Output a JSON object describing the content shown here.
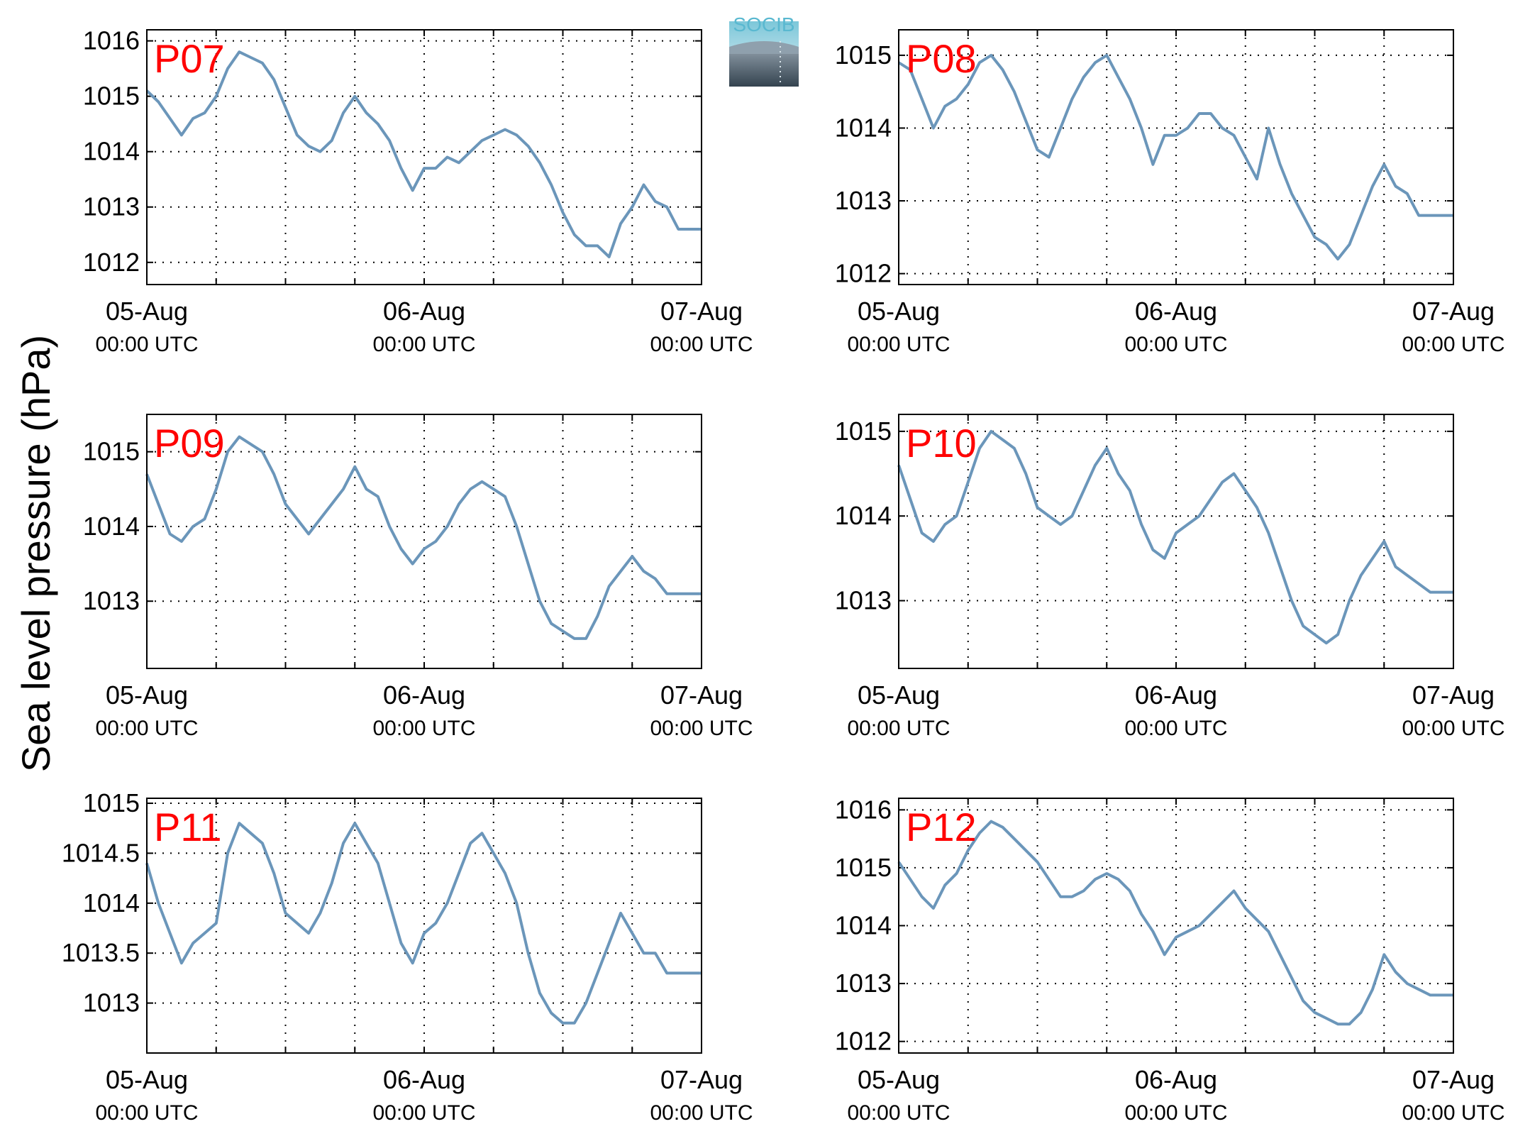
{
  "figure": {
    "ylabel": "Sea level pressure (hPa)",
    "logo_text": "SOCIB",
    "line_color": "#6b96ba",
    "label_color": "#ff0000"
  },
  "chart_data": [
    {
      "type": "line",
      "panel_label": "P07",
      "x_ticks": [
        {
          "x": 0,
          "date": "05-Aug",
          "time": "00:00 UTC"
        },
        {
          "x": 24,
          "date": "06-Aug",
          "time": "00:00 UTC"
        },
        {
          "x": 48,
          "date": "07-Aug",
          "time": "00:00 UTC"
        }
      ],
      "xlim": [
        0,
        48
      ],
      "ylim": [
        1011.6,
        1016.2
      ],
      "yticks": [
        1012,
        1013,
        1014,
        1015,
        1016
      ],
      "ytick_labels": [
        "1012",
        "1013",
        "1014",
        "1015",
        "1016"
      ],
      "grid": true,
      "x": [
        0,
        1,
        2,
        3,
        4,
        5,
        6,
        7,
        8,
        9,
        10,
        11,
        12,
        13,
        14,
        15,
        16,
        17,
        18,
        19,
        20,
        21,
        22,
        23,
        24,
        25,
        26,
        27,
        28,
        29,
        30,
        31,
        32,
        33,
        34,
        35,
        36,
        37,
        38,
        39,
        40,
        41,
        42,
        43,
        44,
        45,
        46,
        47,
        48
      ],
      "y": [
        1015.1,
        1014.9,
        1014.6,
        1014.3,
        1014.6,
        1014.7,
        1015.0,
        1015.5,
        1015.8,
        1015.7,
        1015.6,
        1015.3,
        1014.8,
        1014.3,
        1014.1,
        1014.0,
        1014.2,
        1014.7,
        1015.0,
        1014.7,
        1014.5,
        1014.2,
        1013.7,
        1013.3,
        1013.7,
        1013.7,
        1013.9,
        1013.8,
        1014.0,
        1014.2,
        1014.3,
        1014.4,
        1014.3,
        1014.1,
        1013.8,
        1013.4,
        1012.9,
        1012.5,
        1012.3,
        1012.3,
        1012.1,
        1012.7,
        1013.0,
        1013.4,
        1013.1,
        1013.0,
        1012.6,
        1012.6,
        1012.6
      ]
    },
    {
      "type": "line",
      "panel_label": "P08",
      "x_ticks": [
        {
          "x": 0,
          "date": "05-Aug",
          "time": "00:00 UTC"
        },
        {
          "x": 24,
          "date": "06-Aug",
          "time": "00:00 UTC"
        },
        {
          "x": 48,
          "date": "07-Aug",
          "time": "00:00 UTC"
        }
      ],
      "xlim": [
        0,
        48
      ],
      "ylim": [
        1011.85,
        1015.35
      ],
      "yticks": [
        1012,
        1013,
        1014,
        1015
      ],
      "ytick_labels": [
        "1012",
        "1013",
        "1014",
        "1015"
      ],
      "grid": true,
      "x": [
        0,
        1,
        2,
        3,
        4,
        5,
        6,
        7,
        8,
        9,
        10,
        11,
        12,
        13,
        14,
        15,
        16,
        17,
        18,
        19,
        20,
        21,
        22,
        23,
        24,
        25,
        26,
        27,
        28,
        29,
        30,
        31,
        32,
        33,
        34,
        35,
        36,
        37,
        38,
        39,
        40,
        41,
        42,
        43,
        44,
        45,
        46,
        47,
        48
      ],
      "y": [
        1014.9,
        1014.8,
        1014.4,
        1014.0,
        1014.3,
        1014.4,
        1014.6,
        1014.9,
        1015.0,
        1014.8,
        1014.5,
        1014.1,
        1013.7,
        1013.6,
        1014.0,
        1014.4,
        1014.7,
        1014.9,
        1015.0,
        1014.7,
        1014.4,
        1014.0,
        1013.5,
        1013.9,
        1013.9,
        1014.0,
        1014.2,
        1014.2,
        1014.0,
        1013.9,
        1013.6,
        1013.3,
        1014.0,
        1013.5,
        1013.1,
        1012.8,
        1012.5,
        1012.4,
        1012.2,
        1012.4,
        1012.8,
        1013.2,
        1013.5,
        1013.2,
        1013.1,
        1012.8,
        1012.8,
        1012.8,
        1012.8
      ]
    },
    {
      "type": "line",
      "panel_label": "P09",
      "x_ticks": [
        {
          "x": 0,
          "date": "05-Aug",
          "time": "00:00 UTC"
        },
        {
          "x": 24,
          "date": "06-Aug",
          "time": "00:00 UTC"
        },
        {
          "x": 48,
          "date": "07-Aug",
          "time": "00:00 UTC"
        }
      ],
      "xlim": [
        0,
        48
      ],
      "ylim": [
        1012.1,
        1015.5
      ],
      "yticks": [
        1013,
        1014,
        1015
      ],
      "ytick_labels": [
        "1013",
        "1014",
        "1015"
      ],
      "grid": true,
      "x": [
        0,
        1,
        2,
        3,
        4,
        5,
        6,
        7,
        8,
        9,
        10,
        11,
        12,
        13,
        14,
        15,
        16,
        17,
        18,
        19,
        20,
        21,
        22,
        23,
        24,
        25,
        26,
        27,
        28,
        29,
        30,
        31,
        32,
        33,
        34,
        35,
        36,
        37,
        38,
        39,
        40,
        41,
        42,
        43,
        44,
        45,
        46,
        47,
        48
      ],
      "y": [
        1014.7,
        1014.3,
        1013.9,
        1013.8,
        1014.0,
        1014.1,
        1014.5,
        1015.0,
        1015.2,
        1015.1,
        1015.0,
        1014.7,
        1014.3,
        1014.1,
        1013.9,
        1014.1,
        1014.3,
        1014.5,
        1014.8,
        1014.5,
        1014.4,
        1014.0,
        1013.7,
        1013.5,
        1013.7,
        1013.8,
        1014.0,
        1014.3,
        1014.5,
        1014.6,
        1014.5,
        1014.4,
        1014.0,
        1013.5,
        1013.0,
        1012.7,
        1012.6,
        1012.5,
        1012.5,
        1012.8,
        1013.2,
        1013.4,
        1013.6,
        1013.4,
        1013.3,
        1013.1,
        1013.1,
        1013.1,
        1013.1
      ]
    },
    {
      "type": "line",
      "panel_label": "P10",
      "x_ticks": [
        {
          "x": 0,
          "date": "05-Aug",
          "time": "00:00 UTC"
        },
        {
          "x": 24,
          "date": "06-Aug",
          "time": "00:00 UTC"
        },
        {
          "x": 48,
          "date": "07-Aug",
          "time": "00:00 UTC"
        }
      ],
      "xlim": [
        0,
        48
      ],
      "ylim": [
        1012.2,
        1015.2
      ],
      "yticks": [
        1013,
        1014,
        1015
      ],
      "ytick_labels": [
        "1013",
        "1014",
        "1015"
      ],
      "grid": true,
      "x": [
        0,
        1,
        2,
        3,
        4,
        5,
        6,
        7,
        8,
        9,
        10,
        11,
        12,
        13,
        14,
        15,
        16,
        17,
        18,
        19,
        20,
        21,
        22,
        23,
        24,
        25,
        26,
        27,
        28,
        29,
        30,
        31,
        32,
        33,
        34,
        35,
        36,
        37,
        38,
        39,
        40,
        41,
        42,
        43,
        44,
        45,
        46,
        47,
        48
      ],
      "y": [
        1014.6,
        1014.2,
        1013.8,
        1013.7,
        1013.9,
        1014.0,
        1014.4,
        1014.8,
        1015.0,
        1014.9,
        1014.8,
        1014.5,
        1014.1,
        1014.0,
        1013.9,
        1014.0,
        1014.3,
        1014.6,
        1014.8,
        1014.5,
        1014.3,
        1013.9,
        1013.6,
        1013.5,
        1013.8,
        1013.9,
        1014.0,
        1014.2,
        1014.4,
        1014.5,
        1014.3,
        1014.1,
        1013.8,
        1013.4,
        1013.0,
        1012.7,
        1012.6,
        1012.5,
        1012.6,
        1013.0,
        1013.3,
        1013.5,
        1013.7,
        1013.4,
        1013.3,
        1013.2,
        1013.1,
        1013.1,
        1013.1
      ]
    },
    {
      "type": "line",
      "panel_label": "P11",
      "x_ticks": [
        {
          "x": 0,
          "date": "05-Aug",
          "time": "00:00 UTC"
        },
        {
          "x": 24,
          "date": "06-Aug",
          "time": "00:00 UTC"
        },
        {
          "x": 48,
          "date": "07-Aug",
          "time": "00:00 UTC"
        }
      ],
      "xlim": [
        0,
        48
      ],
      "ylim": [
        1012.5,
        1015.05
      ],
      "yticks": [
        1013,
        1013.5,
        1014,
        1014.5,
        1015
      ],
      "ytick_labels": [
        "1013",
        "1013.5",
        "1014",
        "1014.5",
        "1015"
      ],
      "grid": true,
      "x": [
        0,
        1,
        2,
        3,
        4,
        5,
        6,
        7,
        8,
        9,
        10,
        11,
        12,
        13,
        14,
        15,
        16,
        17,
        18,
        19,
        20,
        21,
        22,
        23,
        24,
        25,
        26,
        27,
        28,
        29,
        30,
        31,
        32,
        33,
        34,
        35,
        36,
        37,
        38,
        39,
        40,
        41,
        42,
        43,
        44,
        45,
        46,
        47,
        48
      ],
      "y": [
        1014.4,
        1014.0,
        1013.7,
        1013.4,
        1013.6,
        1013.7,
        1013.8,
        1014.5,
        1014.8,
        1014.7,
        1014.6,
        1014.3,
        1013.9,
        1013.8,
        1013.7,
        1013.9,
        1014.2,
        1014.6,
        1014.8,
        1014.6,
        1014.4,
        1014.0,
        1013.6,
        1013.4,
        1013.7,
        1013.8,
        1014.0,
        1014.3,
        1014.6,
        1014.7,
        1014.5,
        1014.3,
        1014.0,
        1013.5,
        1013.1,
        1012.9,
        1012.8,
        1012.8,
        1013.0,
        1013.3,
        1013.6,
        1013.9,
        1013.7,
        1013.5,
        1013.5,
        1013.3,
        1013.3,
        1013.3,
        1013.3
      ]
    },
    {
      "type": "line",
      "panel_label": "P12",
      "x_ticks": [
        {
          "x": 0,
          "date": "05-Aug",
          "time": "00:00 UTC"
        },
        {
          "x": 24,
          "date": "06-Aug",
          "time": "00:00 UTC"
        },
        {
          "x": 48,
          "date": "07-Aug",
          "time": "00:00 UTC"
        }
      ],
      "xlim": [
        0,
        48
      ],
      "ylim": [
        1011.8,
        1016.2
      ],
      "yticks": [
        1012,
        1013,
        1014,
        1015,
        1016
      ],
      "ytick_labels": [
        "1012",
        "1013",
        "1014",
        "1015",
        "1016"
      ],
      "grid": true,
      "x": [
        0,
        1,
        2,
        3,
        4,
        5,
        6,
        7,
        8,
        9,
        10,
        11,
        12,
        13,
        14,
        15,
        16,
        17,
        18,
        19,
        20,
        21,
        22,
        23,
        24,
        25,
        26,
        27,
        28,
        29,
        30,
        31,
        32,
        33,
        34,
        35,
        36,
        37,
        38,
        39,
        40,
        41,
        42,
        43,
        44,
        45,
        46,
        47,
        48
      ],
      "y": [
        1015.1,
        1014.8,
        1014.5,
        1014.3,
        1014.7,
        1014.9,
        1015.3,
        1015.6,
        1015.8,
        1015.7,
        1015.5,
        1015.3,
        1015.1,
        1014.8,
        1014.5,
        1014.5,
        1014.6,
        1014.8,
        1014.9,
        1014.8,
        1014.6,
        1014.2,
        1013.9,
        1013.5,
        1013.8,
        1013.9,
        1014.0,
        1014.2,
        1014.4,
        1014.6,
        1014.3,
        1014.1,
        1013.9,
        1013.5,
        1013.1,
        1012.7,
        1012.5,
        1012.4,
        1012.3,
        1012.3,
        1012.5,
        1012.9,
        1013.5,
        1013.2,
        1013.0,
        1012.9,
        1012.8,
        1012.8,
        1012.8
      ]
    }
  ]
}
